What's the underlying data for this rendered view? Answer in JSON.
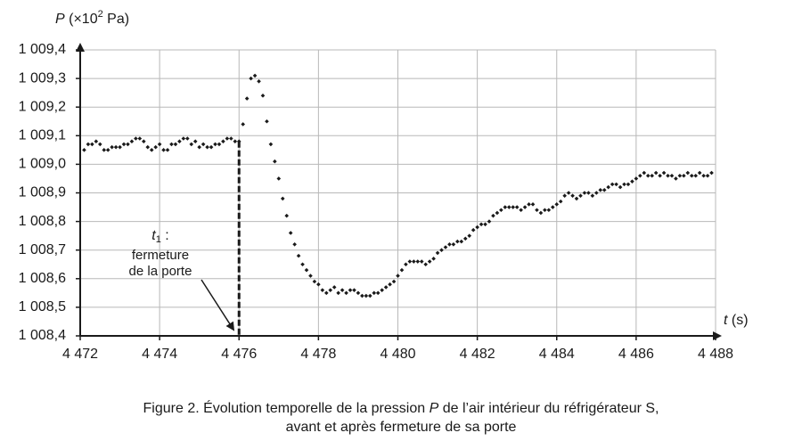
{
  "chart_data": {
    "type": "scatter",
    "ylabel_symbol": "P",
    "ylabel_unit_start": "(×10",
    "ylabel_exponent": "2",
    "ylabel_unit_end": " Pa)",
    "xlabel_symbol": "t",
    "xlabel_unit": "(s)",
    "caption_start": "Figure 2. Évolution temporelle de la pression ",
    "caption_symbol": "P",
    "caption_end": " de l’air intérieur du réfrigérateur S,",
    "caption_line2": "avant et après fermeture de sa porte",
    "annotation": {
      "symbol": "t",
      "subscript": "1",
      "colon": " :",
      "line1": "fermeture",
      "line2": "de la porte"
    },
    "event": {
      "x": 4476,
      "y": 1009.08
    },
    "color": "#1a1a1a",
    "grid": true,
    "xlim": [
      4472,
      4488
    ],
    "xticks": [
      {
        "value": 4472,
        "label": "4 472"
      },
      {
        "value": 4474,
        "label": "4 474"
      },
      {
        "value": 4476,
        "label": "4 476"
      },
      {
        "value": 4478,
        "label": "4 478"
      },
      {
        "value": 4480,
        "label": "4 480"
      },
      {
        "value": 4482,
        "label": "4 482"
      },
      {
        "value": 4484,
        "label": "4 484"
      },
      {
        "value": 4486,
        "label": "4 486"
      },
      {
        "value": 4488,
        "label": "4 488"
      }
    ],
    "ylim": [
      1008.4,
      1009.4
    ],
    "yticks": [
      {
        "value": 1008.4,
        "label": "1 008,4"
      },
      {
        "value": 1008.5,
        "label": "1 008,5"
      },
      {
        "value": 1008.6,
        "label": "1 008,6"
      },
      {
        "value": 1008.7,
        "label": "1 008,7"
      },
      {
        "value": 1008.8,
        "label": "1 008,8"
      },
      {
        "value": 1008.9,
        "label": "1 008,9"
      },
      {
        "value": 1009.0,
        "label": "1 009,0"
      },
      {
        "value": 1009.1,
        "label": "1 009,1"
      },
      {
        "value": 1009.2,
        "label": "1 009,2"
      },
      {
        "value": 1009.3,
        "label": "1 009,3"
      },
      {
        "value": 1009.4,
        "label": "1 009,4"
      }
    ],
    "x": [
      4472.1,
      4472.2,
      4472.3,
      4472.4,
      4472.5,
      4472.6,
      4472.7,
      4472.8,
      4472.9,
      4473.0,
      4473.1,
      4473.2,
      4473.3,
      4473.4,
      4473.5,
      4473.6,
      4473.7,
      4473.8,
      4473.9,
      4474.0,
      4474.1,
      4474.2,
      4474.3,
      4474.4,
      4474.5,
      4474.6,
      4474.7,
      4474.8,
      4474.9,
      4475.0,
      4475.1,
      4475.2,
      4475.3,
      4475.4,
      4475.5,
      4475.6,
      4475.7,
      4475.8,
      4475.9,
      4476.0,
      4476.1,
      4476.2,
      4476.3,
      4476.4,
      4476.5,
      4476.6,
      4476.7,
      4476.8,
      4476.9,
      4477.0,
      4477.1,
      4477.2,
      4477.3,
      4477.4,
      4477.5,
      4477.6,
      4477.7,
      4477.8,
      4477.9,
      4478.0,
      4478.1,
      4478.2,
      4478.3,
      4478.4,
      4478.5,
      4478.6,
      4478.7,
      4478.8,
      4478.9,
      4479.0,
      4479.1,
      4479.2,
      4479.3,
      4479.4,
      4479.5,
      4479.6,
      4479.7,
      4479.8,
      4479.9,
      4480.0,
      4480.1,
      4480.2,
      4480.3,
      4480.4,
      4480.5,
      4480.6,
      4480.7,
      4480.8,
      4480.9,
      4481.0,
      4481.1,
      4481.2,
      4481.3,
      4481.4,
      4481.5,
      4481.6,
      4481.7,
      4481.8,
      4481.9,
      4482.0,
      4482.1,
      4482.2,
      4482.3,
      4482.4,
      4482.5,
      4482.6,
      4482.7,
      4482.8,
      4482.9,
      4483.0,
      4483.1,
      4483.2,
      4483.3,
      4483.4,
      4483.5,
      4483.6,
      4483.7,
      4483.8,
      4483.9,
      4484.0,
      4484.1,
      4484.2,
      4484.3,
      4484.4,
      4484.5,
      4484.6,
      4484.7,
      4484.8,
      4484.9,
      4485.0,
      4485.1,
      4485.2,
      4485.3,
      4485.4,
      4485.5,
      4485.6,
      4485.7,
      4485.8,
      4485.9,
      4486.0,
      4486.1,
      4486.2,
      4486.3,
      4486.4,
      4486.5,
      4486.6,
      4486.7,
      4486.8,
      4486.9,
      4487.0,
      4487.1,
      4487.2,
      4487.3,
      4487.4,
      4487.5,
      4487.6,
      4487.7,
      4487.8,
      4487.9
    ],
    "values": [
      1009.05,
      1009.07,
      1009.07,
      1009.08,
      1009.07,
      1009.05,
      1009.05,
      1009.06,
      1009.06,
      1009.06,
      1009.07,
      1009.07,
      1009.08,
      1009.09,
      1009.09,
      1009.08,
      1009.06,
      1009.05,
      1009.06,
      1009.07,
      1009.05,
      1009.05,
      1009.07,
      1009.07,
      1009.08,
      1009.09,
      1009.09,
      1009.07,
      1009.08,
      1009.06,
      1009.07,
      1009.06,
      1009.06,
      1009.07,
      1009.07,
      1009.08,
      1009.09,
      1009.09,
      1009.08,
      1009.08,
      1009.14,
      1009.23,
      1009.3,
      1009.31,
      1009.29,
      1009.24,
      1009.15,
      1009.07,
      1009.01,
      1008.95,
      1008.88,
      1008.82,
      1008.76,
      1008.72,
      1008.68,
      1008.65,
      1008.63,
      1008.61,
      1008.59,
      1008.58,
      1008.56,
      1008.55,
      1008.56,
      1008.57,
      1008.55,
      1008.56,
      1008.55,
      1008.56,
      1008.56,
      1008.55,
      1008.54,
      1008.54,
      1008.54,
      1008.55,
      1008.55,
      1008.56,
      1008.57,
      1008.58,
      1008.59,
      1008.61,
      1008.63,
      1008.65,
      1008.66,
      1008.66,
      1008.66,
      1008.66,
      1008.65,
      1008.66,
      1008.67,
      1008.69,
      1008.7,
      1008.71,
      1008.72,
      1008.72,
      1008.73,
      1008.73,
      1008.74,
      1008.75,
      1008.77,
      1008.78,
      1008.79,
      1008.79,
      1008.8,
      1008.82,
      1008.83,
      1008.84,
      1008.85,
      1008.85,
      1008.85,
      1008.85,
      1008.84,
      1008.85,
      1008.86,
      1008.86,
      1008.84,
      1008.83,
      1008.84,
      1008.84,
      1008.85,
      1008.86,
      1008.87,
      1008.89,
      1008.9,
      1008.89,
      1008.88,
      1008.89,
      1008.9,
      1008.9,
      1008.89,
      1008.9,
      1008.91,
      1008.91,
      1008.92,
      1008.93,
      1008.93,
      1008.92,
      1008.93,
      1008.93,
      1008.94,
      1008.95,
      1008.96,
      1008.97,
      1008.96,
      1008.96,
      1008.97,
      1008.96,
      1008.97,
      1008.96,
      1008.96,
      1008.95,
      1008.96,
      1008.96,
      1008.97,
      1008.96,
      1008.96,
      1008.97,
      1008.96,
      1008.96,
      1008.97
    ]
  }
}
